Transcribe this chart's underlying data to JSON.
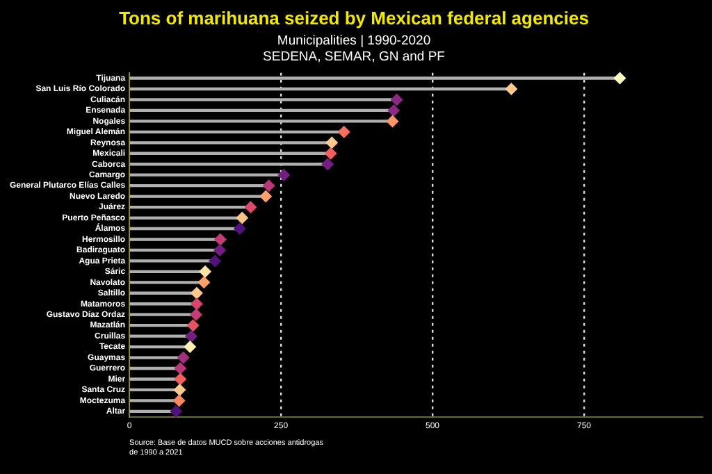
{
  "chart_data": {
    "type": "lollipop",
    "title": "Tons of marihuana seized by Mexican federal agencies",
    "subtitle": "Municipalities | 1990-2020\nSEDENA, SEMAR, GN and PF",
    "categories": [
      "Tijuana",
      "San Luis Río Colorado",
      "Culiacán",
      "Ensenada",
      "Nogales",
      "Miguel Alemán",
      "Reynosa",
      "Mexicali",
      "Caborca",
      "Camargo",
      "General Plutarco Elías Calles",
      "Nuevo Laredo",
      "Juárez",
      "Puerto Peñasco",
      "Álamos",
      "Hermosillo",
      "Badiraguato",
      "Agua Prieta",
      "Sáric",
      "Navolato",
      "Saltillo",
      "Matamoros",
      "Gustavo Díaz Ordaz",
      "Mazatlán",
      "Cruillas",
      "Tecate",
      "Guaymas",
      "Guerrero",
      "Mier",
      "Santa Cruz",
      "Moctezuma",
      "Altar"
    ],
    "values": [
      809,
      630,
      441,
      436,
      434,
      354,
      334,
      332,
      327,
      255,
      230,
      225,
      200,
      186,
      182,
      150,
      149,
      141,
      125,
      123,
      111,
      111,
      110,
      105,
      102,
      100,
      89,
      84,
      84,
      83,
      82,
      77
    ],
    "colors": [
      "#fcfdbf",
      "#fec98d",
      "#8c2981",
      "#8c2981",
      "#fd9567",
      "#f7705c",
      "#fec98d",
      "#f1605d",
      "#721f81",
      "#721f81",
      "#b73779",
      "#fea16e",
      "#de4968",
      "#fec287",
      "#51127c",
      "#c13b75",
      "#721f81",
      "#51127c",
      "#fde4a6",
      "#fe9f6d",
      "#fec98d",
      "#d6456c",
      "#c43c75",
      "#e85362",
      "#721f81",
      "#fcf0b0",
      "#a3307e",
      "#b73779",
      "#f1605d",
      "#fec98d",
      "#fb8861",
      "#51127c"
    ],
    "orientation": "horizontal",
    "xlim": [
      0,
      945
    ],
    "xticks": [
      0,
      250,
      500,
      750
    ],
    "grid": "x",
    "marker": "diamond",
    "annotations": [
      "Source: Base de datos MUCD sobre acciones antidrogas de 1990 a 2021"
    ]
  }
}
